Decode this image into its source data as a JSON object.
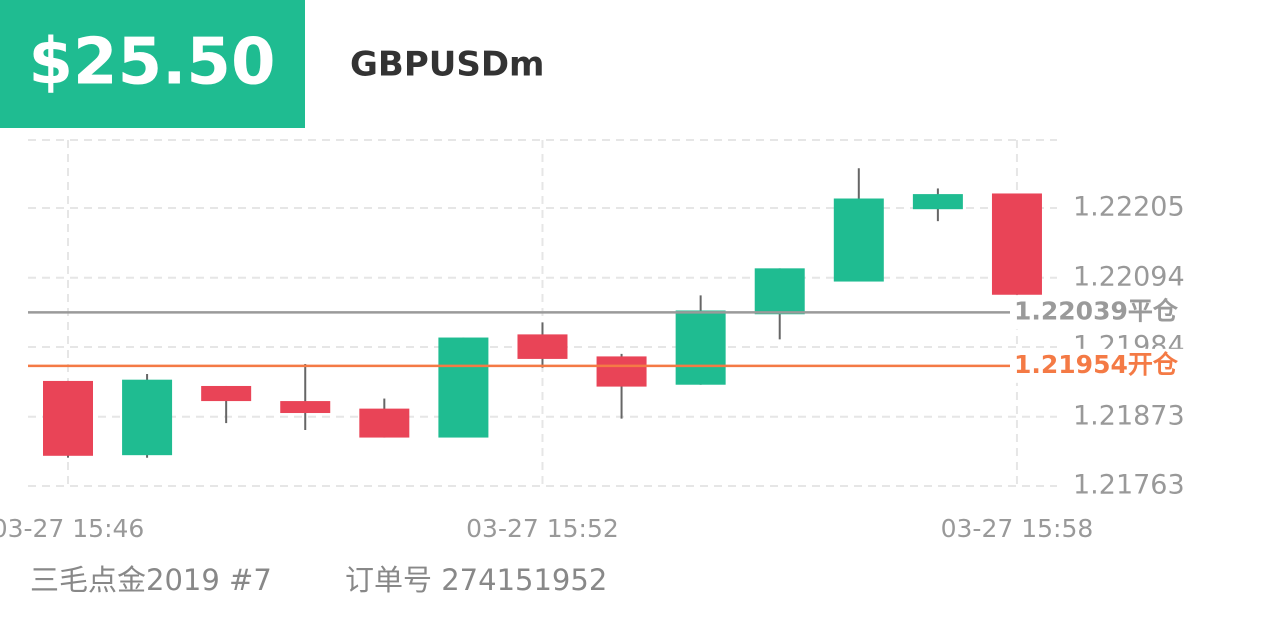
{
  "header": {
    "balance": "$25.50",
    "symbol": "GBPUSDm"
  },
  "chart_data": {
    "type": "candlestick",
    "categories": [
      "03-27 15:46",
      null,
      null,
      null,
      null,
      null,
      "03-27 15:52",
      null,
      null,
      null,
      null,
      null,
      "03-27 15:58"
    ],
    "open": [
      1.2193,
      1.21812,
      1.21922,
      1.21898,
      1.21886,
      1.2184,
      1.22004,
      1.21969,
      1.21924,
      1.22036,
      1.22088,
      1.22203,
      1.22228
    ],
    "high": [
      1.2193,
      1.21941,
      1.21922,
      1.21957,
      1.21902,
      1.21999,
      1.22023,
      1.21973,
      1.22066,
      1.22109,
      1.22268,
      1.22236,
      1.22228
    ],
    "low": [
      1.21808,
      1.21808,
      1.21863,
      1.21852,
      1.2184,
      1.2184,
      1.21951,
      1.2187,
      1.21924,
      1.21996,
      1.22088,
      1.22184,
      1.22067
    ],
    "close": [
      1.21811,
      1.21932,
      1.21898,
      1.21879,
      1.2184,
      1.21999,
      1.21965,
      1.21921,
      1.22042,
      1.22109,
      1.2222,
      1.22227,
      1.22067
    ],
    "up_color": "#1fbc91",
    "down_color": "#e94457",
    "ylim": [
      1.21763,
      1.22313
    ],
    "yticks": [
      1.21763,
      1.21873,
      1.21984,
      1.22094,
      1.22205
    ],
    "grid": true,
    "lines": [
      {
        "value": 1.22039,
        "label": "1.22039平仓",
        "color": "#9a9a9a"
      },
      {
        "value": 1.21954,
        "label": "1.21954开仓",
        "color": "#f47a45"
      }
    ]
  },
  "footer": {
    "account": "三毛点金2019 #7",
    "order": "订单号 274151952"
  }
}
